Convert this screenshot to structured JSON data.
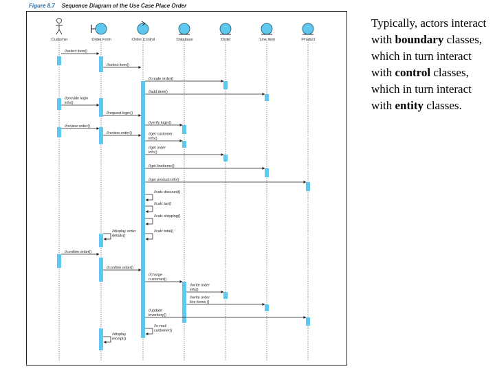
{
  "figure": {
    "number": "Figure 8.7",
    "title": "Sequence Diagram of the Use Case Place Order",
    "colors": {
      "activation": "#5ec8ef",
      "object": "#5ec8ef",
      "line": "#222222",
      "title_number": "#2a6ea8"
    }
  },
  "participants": [
    {
      "id": "customer",
      "name": ":Customer",
      "kind": "actor"
    },
    {
      "id": "orderform",
      "name": ":Order Form",
      "kind": "boundary"
    },
    {
      "id": "ordercontrol",
      "name": ":Order Control",
      "kind": "control"
    },
    {
      "id": "database",
      "name": ":Database",
      "kind": "entity"
    },
    {
      "id": "order",
      "name": ":Order",
      "kind": "entity"
    },
    {
      "id": "lineitem",
      "name": ":Line Item",
      "kind": "entity"
    },
    {
      "id": "product",
      "name": ":Product",
      "kind": "entity"
    }
  ],
  "messages": [
    {
      "label": [
        "//select item()"
      ],
      "from": "customer",
      "to": "orderform"
    },
    {
      "label": [
        "//select item()"
      ],
      "from": "orderform",
      "to": "ordercontrol"
    },
    {
      "label": [
        "//create order()"
      ],
      "from": "ordercontrol",
      "to": "order"
    },
    {
      "label": [
        "//add item()"
      ],
      "from": "ordercontrol",
      "to": "lineitem"
    },
    {
      "label": [
        "//provide login",
        "info()"
      ],
      "from": "customer",
      "to": "orderform"
    },
    {
      "label": [
        "//request login()"
      ],
      "from": "orderform",
      "to": "ordercontrol"
    },
    {
      "label": [
        "//verify login()"
      ],
      "from": "ordercontrol",
      "to": "database"
    },
    {
      "label": [
        "//review order()"
      ],
      "from": "customer",
      "to": "orderform"
    },
    {
      "label": [
        "//review order()"
      ],
      "from": "orderform",
      "to": "ordercontrol"
    },
    {
      "label": [
        "//get customer",
        "info()"
      ],
      "from": "ordercontrol",
      "to": "database"
    },
    {
      "label": [
        "//get order",
        "info()"
      ],
      "from": "ordercontrol",
      "to": "order"
    },
    {
      "label": [
        "//get lineitems()"
      ],
      "from": "ordercontrol",
      "to": "lineitem"
    },
    {
      "label": [
        "//get product info()"
      ],
      "from": "ordercontrol",
      "to": "product"
    },
    {
      "label": [
        "//calc discount()"
      ],
      "from": "ordercontrol",
      "to": "ordercontrol"
    },
    {
      "label": [
        "//calc tax()"
      ],
      "from": "ordercontrol",
      "to": "ordercontrol"
    },
    {
      "label": [
        "//calc shipping()"
      ],
      "from": "ordercontrol",
      "to": "ordercontrol"
    },
    {
      "label": [
        "//display order",
        "details()"
      ],
      "from": "orderform",
      "to": "orderform"
    },
    {
      "label": [
        "//calc total()"
      ],
      "from": "ordercontrol",
      "to": "ordercontrol"
    },
    {
      "label": [
        "//confirm order()"
      ],
      "from": "customer",
      "to": "orderform"
    },
    {
      "label": [
        "//confirm order()"
      ],
      "from": "orderform",
      "to": "ordercontrol"
    },
    {
      "label": [
        "//charge",
        "customer()"
      ],
      "from": "ordercontrol",
      "to": "database"
    },
    {
      "label": [
        "//write order",
        "info()"
      ],
      "from": "database",
      "to": "order"
    },
    {
      "label": [
        "//write order",
        "line items ()"
      ],
      "from": "database",
      "to": "lineitem"
    },
    {
      "label": [
        "//update",
        "inventory()"
      ],
      "from": "ordercontrol",
      "to": "product"
    },
    {
      "label": [
        "//e-mail",
        "customer()"
      ],
      "from": "ordercontrol",
      "to": "ordercontrol"
    },
    {
      "label": [
        "//display",
        "receipt()"
      ],
      "from": "orderform",
      "to": "orderform"
    }
  ],
  "side_text": {
    "t1": "Typically, actors interact with ",
    "b1": "boundary",
    "t2": " classes, which in turn interact with ",
    "b2": "control",
    "t3": " classes, which in turn interact with ",
    "b3": "entity",
    "t4": " classes."
  }
}
